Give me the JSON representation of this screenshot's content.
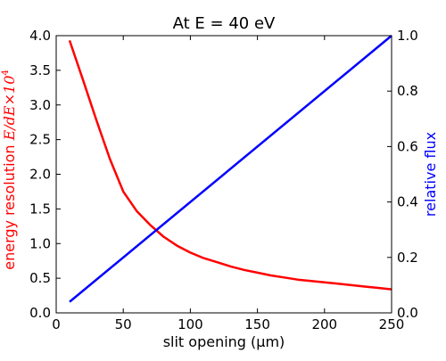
{
  "chart_data": {
    "type": "line",
    "title": "At E = 40 eV",
    "xlabel": "slit opening (µm)",
    "xlim": [
      0,
      250
    ],
    "x_ticks": [
      "0",
      "50",
      "100",
      "150",
      "200",
      "250"
    ],
    "x_tick_values": [
      0,
      50,
      100,
      150,
      200,
      250
    ],
    "left_axis": {
      "label_prefix": "energy resolution ",
      "label_math": "E/dE",
      "label_times": "×10",
      "label_exp": "4",
      "ylim": [
        0,
        4
      ],
      "ticks": [
        "0.0",
        "0.5",
        "1.0",
        "1.5",
        "2.0",
        "2.5",
        "3.0",
        "3.5",
        "4.0"
      ],
      "tick_values": [
        0,
        0.5,
        1.0,
        1.5,
        2.0,
        2.5,
        3.0,
        3.5,
        4.0
      ],
      "color": "#ff0000"
    },
    "right_axis": {
      "label": "relative flux",
      "ylim": [
        0,
        1
      ],
      "ticks": [
        "0.0",
        "0.2",
        "0.4",
        "0.6",
        "0.8",
        "1.0"
      ],
      "tick_values": [
        0,
        0.2,
        0.4,
        0.6,
        0.8,
        1.0
      ],
      "color": "#0000ff"
    },
    "series": [
      {
        "axis": "left",
        "color": "#ff0000",
        "x": [
          10,
          20,
          30,
          40,
          50,
          60,
          70,
          80,
          90,
          100,
          110,
          120,
          130,
          140,
          150,
          160,
          170,
          180,
          190,
          200,
          210,
          220,
          230,
          240,
          250
        ],
        "y": [
          3.93,
          3.36,
          2.78,
          2.22,
          1.75,
          1.47,
          1.27,
          1.1,
          0.97,
          0.87,
          0.79,
          0.73,
          0.67,
          0.62,
          0.58,
          0.54,
          0.51,
          0.48,
          0.46,
          0.44,
          0.42,
          0.4,
          0.38,
          0.36,
          0.34
        ]
      },
      {
        "axis": "right",
        "color": "#0000ff",
        "x": [
          10,
          250
        ],
        "y": [
          0.04,
          1.0
        ]
      }
    ]
  }
}
